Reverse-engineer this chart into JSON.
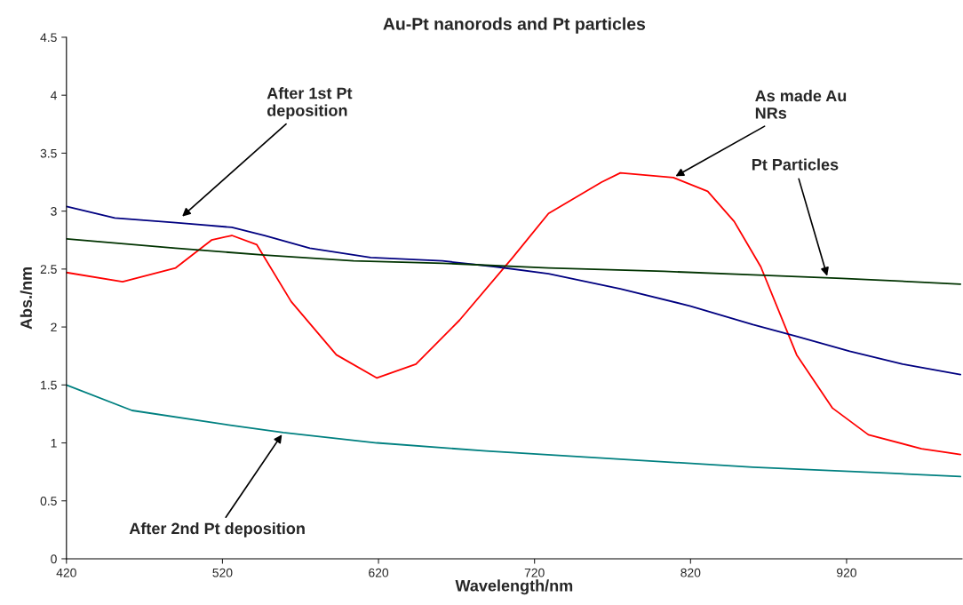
{
  "chart_data": {
    "type": "line",
    "title": "Au-Pt nanorods and Pt particles",
    "xlabel": "Wavelength/nm",
    "ylabel": "Abs./nm",
    "xlim": [
      420,
      994
    ],
    "ylim": [
      0,
      4.5
    ],
    "xticks": [
      420,
      520,
      620,
      720,
      820,
      920
    ],
    "yticks": [
      0,
      0.5,
      1,
      1.5,
      2,
      2.5,
      3,
      3.5,
      4,
      4.5
    ],
    "grid": false,
    "marker": "none",
    "line_style": "solid",
    "series": [
      {
        "color": "#ff0000",
        "x": [
          420,
          456,
          490,
          513,
          526,
          542,
          564,
          593,
          619,
          644,
          672,
          706,
          729,
          763,
          775,
          809,
          831,
          848,
          865,
          888,
          911,
          934,
          968,
          993
        ],
        "values": [
          2.47,
          2.39,
          2.51,
          2.75,
          2.79,
          2.71,
          2.22,
          1.76,
          1.56,
          1.68,
          2.06,
          2.6,
          2.98,
          3.25,
          3.33,
          3.29,
          3.17,
          2.91,
          2.52,
          1.76,
          1.3,
          1.07,
          0.95,
          0.9
        ]
      },
      {
        "color": "#000080",
        "x": [
          420,
          451,
          490,
          526,
          547,
          576,
          615,
          661,
          695,
          729,
          775,
          820,
          860,
          888,
          922,
          956,
          993
        ],
        "values": [
          3.04,
          2.94,
          2.9,
          2.86,
          2.79,
          2.68,
          2.6,
          2.57,
          2.52,
          2.46,
          2.33,
          2.18,
          2.02,
          1.92,
          1.79,
          1.68,
          1.59
        ]
      },
      {
        "color": "#003300",
        "x": [
          420,
          490,
          547,
          604,
          661,
          729,
          803,
          860,
          917,
          993
        ],
        "values": [
          2.76,
          2.68,
          2.62,
          2.57,
          2.55,
          2.51,
          2.48,
          2.45,
          2.42,
          2.37
        ]
      },
      {
        "color": "#008080",
        "x": [
          420,
          462,
          526,
          559,
          619,
          689,
          775,
          860,
          945,
          993
        ],
        "values": [
          1.5,
          1.28,
          1.15,
          1.09,
          1.0,
          0.93,
          0.86,
          0.79,
          0.74,
          0.71
        ]
      }
    ],
    "annotations": [
      {
        "text": "After 1st Pt\ndeposition",
        "x": 493,
        "y": 2.94
      },
      {
        "text": "As made Au\nNRs",
        "x": 809,
        "y": 3.29
      },
      {
        "text": "Pt Particles",
        "x": 908,
        "y": 2.42
      },
      {
        "text": "After 2nd Pt deposition",
        "x": 559,
        "y": 1.09
      }
    ]
  }
}
